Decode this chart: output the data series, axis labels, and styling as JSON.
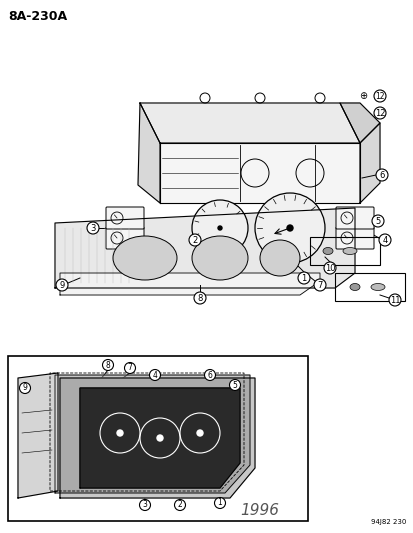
{
  "title": "8A-230A",
  "footer": "94J82 230",
  "year_label": "1996",
  "bg_color": "#ffffff",
  "line_color": "#000000",
  "fig_width": 4.14,
  "fig_height": 5.33,
  "dpi": 100
}
